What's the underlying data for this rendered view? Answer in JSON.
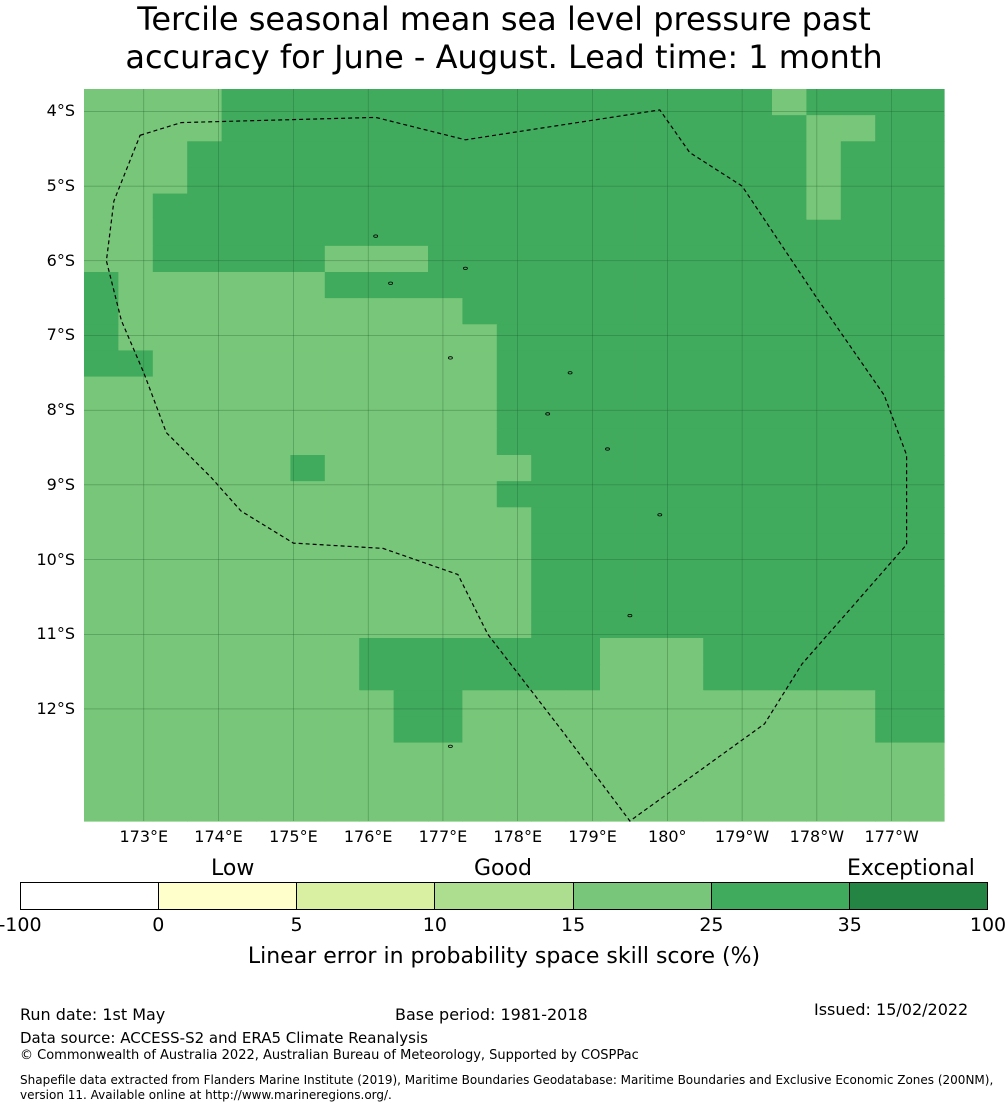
{
  "title_line1": "Tercile seasonal mean sea level pressure past",
  "title_line2": "accuracy for June - August. Lead time: 1 month",
  "map": {
    "lat_labels": [
      "4°S",
      "5°S",
      "6°S",
      "7°S",
      "8°S",
      "9°S",
      "10°S",
      "11°S",
      "12°S"
    ],
    "lon_labels": [
      "173°E",
      "174°E",
      "175°E",
      "176°E",
      "177°E",
      "178°E",
      "179°E",
      "180°",
      "179°W",
      "178°W",
      "177°W"
    ],
    "lon_range": [
      172.2,
      183.7
    ],
    "lat_range": [
      -3.7,
      -13.5
    ],
    "colors": {
      "lev0": "#ffffff",
      "lev1": "#ffffcc",
      "lev2": "#d9f0a3",
      "lev3": "#addd8e",
      "lev4": "#78c679",
      "lev5": "#41ab5d",
      "lev6": "#238443",
      "land": "#000000",
      "boundary": "#000000"
    },
    "skill_grid_category_rows_north_to_south": [
      "4444555555555555555545555",
      "4444555555555555555554455",
      "4445555555555555555554555",
      "4445555555555555555554555",
      "4455555555555555555554555",
      "4455555555555555555555555",
      "4455555444555555555555555",
      "5444444555555555555555555",
      "5444444444455555555555555",
      "5444444444445555555555555",
      "5544444444445555555555555",
      "4444444444445555555555555",
      "4444444444445555555555555",
      "4444444444445555555555555",
      "4444445444444555555555555",
      "4444444444445555555555555",
      "4444444444444555555555555",
      "4444444444444555555555555",
      "4444444444444555555555555",
      "4444444444444555555555555",
      "4444444444444555555555555",
      "4444444455555554445555555",
      "4444444455555554445555555",
      "4444444445544444444444455",
      "4444444445544444444444455",
      "4444444444444444444444444",
      "4444444444444444444444444",
      "4444444444444444444444444"
    ],
    "eez_boundary_lonlat": [
      [
        172.95,
        -4.32
      ],
      [
        173.5,
        -4.15
      ],
      [
        176.1,
        -4.08
      ],
      [
        177.3,
        -4.38
      ],
      [
        179.9,
        -3.98
      ],
      [
        180.3,
        -4.55
      ],
      [
        181.0,
        -5.0
      ],
      [
        181.6,
        -5.9
      ],
      [
        182.0,
        -6.5
      ],
      [
        182.9,
        -7.8
      ],
      [
        183.2,
        -8.6
      ],
      [
        183.2,
        -9.8
      ],
      [
        182.5,
        -10.6
      ],
      [
        181.8,
        -11.4
      ],
      [
        181.3,
        -12.2
      ],
      [
        179.5,
        -13.5
      ],
      [
        178.6,
        -12.3
      ],
      [
        177.6,
        -11.0
      ],
      [
        177.2,
        -10.2
      ],
      [
        176.2,
        -9.85
      ],
      [
        175.0,
        -9.78
      ],
      [
        174.3,
        -9.35
      ],
      [
        173.9,
        -8.9
      ],
      [
        173.3,
        -8.3
      ],
      [
        173.0,
        -7.5
      ],
      [
        172.7,
        -6.8
      ],
      [
        172.5,
        -6.0
      ],
      [
        172.6,
        -5.2
      ],
      [
        172.95,
        -4.32
      ]
    ],
    "land_points_lonlat": [
      [
        176.1,
        -5.67
      ],
      [
        177.3,
        -6.1
      ],
      [
        176.3,
        -6.3
      ],
      [
        177.1,
        -7.3
      ],
      [
        178.7,
        -7.5
      ],
      [
        178.4,
        -8.05
      ],
      [
        179.2,
        -8.52
      ],
      [
        179.9,
        -9.4
      ],
      [
        179.5,
        -10.75
      ],
      [
        177.1,
        -12.5
      ]
    ]
  },
  "colorbar": {
    "categories": [
      "Low",
      "Good",
      "Exceptional"
    ],
    "ticks": [
      "-100",
      "0",
      "5",
      "10",
      "15",
      "25",
      "35",
      "100"
    ],
    "colors": [
      "#ffffff",
      "#ffffcc",
      "#d9f0a3",
      "#addd8e",
      "#78c679",
      "#41ab5d",
      "#238443"
    ],
    "label": "Linear error in probability space skill score (%)"
  },
  "footer": {
    "run_date": "Run date: 1st May",
    "base_period": "Base period: 1981-2018",
    "issued": "Issued: 15/02/2022",
    "data_source": "Data source: ACCESS-S2 and ERA5 Climate Reanalysis",
    "copyright": "© Commonwealth of Australia 2022, Australian Bureau of Meteorology, Supported by COSPPac",
    "shapefile_line1": "Shapefile data extracted from Flanders Marine Institute (2019), Maritime Boundaries Geodatabase: Maritime Boundaries and Exclusive Economic Zones (200NM),",
    "shapefile_line2": "version 11. Available online at http://www.marineregions.org/."
  }
}
